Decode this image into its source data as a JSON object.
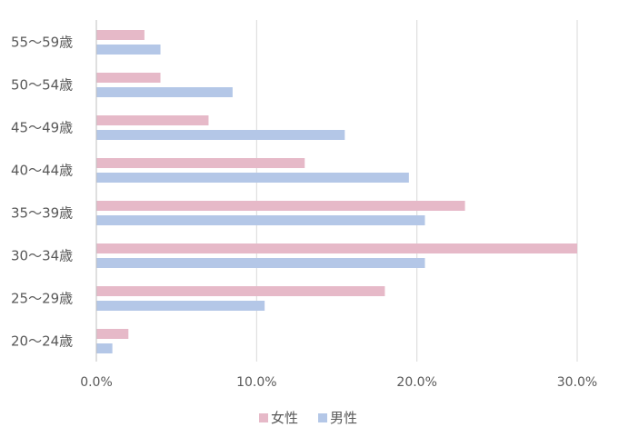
{
  "chart_data": {
    "type": "bar",
    "orientation": "horizontal",
    "categories": [
      "55〜59歳",
      "50〜54歳",
      "45〜49歳",
      "40〜44歳",
      "35〜39歳",
      "30〜34歳",
      "25〜29歳",
      "20〜24歳"
    ],
    "series": [
      {
        "name": "女性",
        "color": "#E6B9C8",
        "values": [
          3.0,
          4.0,
          7.0,
          13.0,
          23.0,
          30.0,
          18.0,
          2.0
        ]
      },
      {
        "name": "男性",
        "color": "#B4C7E7",
        "values": [
          4.0,
          8.5,
          15.5,
          19.5,
          20.5,
          20.5,
          10.5,
          1.0
        ]
      }
    ],
    "x_ticks": [
      "0.0%",
      "10.0%",
      "20.0%",
      "30.0%"
    ],
    "x_tick_values": [
      0,
      10,
      20,
      30
    ],
    "xlim": [
      0,
      30
    ],
    "unit": "%",
    "grid": "vertical",
    "legend_position": "bottom"
  }
}
